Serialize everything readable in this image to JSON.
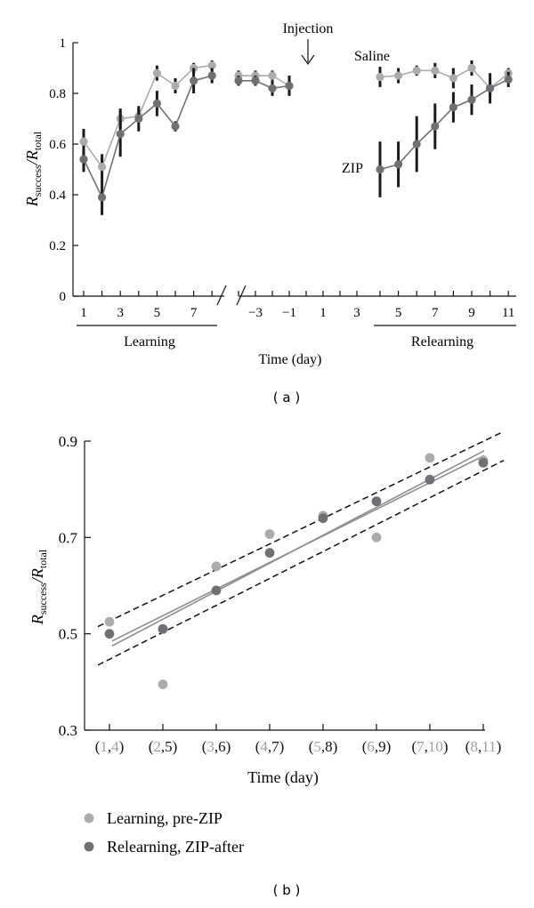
{
  "panel_labels": {
    "a": "( a )",
    "b": "( b )"
  },
  "chart_data": [
    {
      "type": "line",
      "ylabel": {
        "main": "R",
        "sub1": "success",
        "slash": "/R",
        "sub2": "total"
      },
      "xlabel": "Time (day)",
      "ylim": [
        0,
        1
      ],
      "yticks": [
        "0",
        "0.2",
        "0.4",
        "0.6",
        "0.8",
        "1"
      ],
      "ytick_values": [
        0,
        0.2,
        0.4,
        0.6,
        0.8,
        1
      ],
      "xticks_learning": [
        "1",
        "3",
        "5",
        "7"
      ],
      "xticks_mid": [
        "−3",
        "−1",
        "1",
        "3"
      ],
      "xticks_relearning": [
        "5",
        "7",
        "9",
        "11"
      ],
      "section_labels": {
        "learning": "Learning",
        "relearning": "Relearning"
      },
      "annotations": {
        "injection": "Injection",
        "saline": "Saline",
        "zip": "ZIP"
      },
      "series": [
        {
          "name": "Saline",
          "color": "#a9abad",
          "learning": [
            {
              "day": 1,
              "y": 0.61,
              "err": 0.05
            },
            {
              "day": 2,
              "y": 0.51,
              "err": 0.05
            },
            {
              "day": 3,
              "y": 0.7,
              "err": 0.04
            },
            {
              "day": 4,
              "y": 0.71,
              "err": 0.03
            },
            {
              "day": 5,
              "y": 0.88,
              "err": 0.03
            },
            {
              "day": 6,
              "y": 0.83,
              "err": 0.03
            },
            {
              "day": 7,
              "y": 0.9,
              "err": 0.02
            },
            {
              "day": 8,
              "y": 0.91,
              "err": 0.02
            }
          ],
          "pre": [
            {
              "day": -4,
              "y": 0.87,
              "err": 0.02
            },
            {
              "day": -3,
              "y": 0.87,
              "err": 0.02
            },
            {
              "day": -2,
              "y": 0.87,
              "err": 0.02
            },
            {
              "day": -1,
              "y": 0.83,
              "err": 0.02
            }
          ],
          "relearning": [
            {
              "day": 4,
              "y": 0.865,
              "err": 0.04
            },
            {
              "day": 5,
              "y": 0.87,
              "err": 0.03
            },
            {
              "day": 6,
              "y": 0.89,
              "err": 0.02
            },
            {
              "day": 7,
              "y": 0.89,
              "err": 0.03
            },
            {
              "day": 8,
              "y": 0.86,
              "err": 0.04
            },
            {
              "day": 9,
              "y": 0.9,
              "err": 0.03
            },
            {
              "day": 10,
              "y": 0.82,
              "err": 0.03
            },
            {
              "day": 11,
              "y": 0.88,
              "err": 0.02
            }
          ]
        },
        {
          "name": "ZIP",
          "color": "#6e7073",
          "learning": [
            {
              "day": 1,
              "y": 0.54,
              "err": 0.05
            },
            {
              "day": 2,
              "y": 0.39,
              "err": 0.07
            },
            {
              "day": 3,
              "y": 0.64,
              "err": 0.09
            },
            {
              "day": 4,
              "y": 0.7,
              "err": 0.05
            },
            {
              "day": 5,
              "y": 0.76,
              "err": 0.05
            },
            {
              "day": 6,
              "y": 0.67,
              "err": 0.02
            },
            {
              "day": 7,
              "y": 0.85,
              "err": 0.05
            },
            {
              "day": 8,
              "y": 0.87,
              "err": 0.03
            }
          ],
          "pre": [
            {
              "day": -4,
              "y": 0.85,
              "err": 0.02
            },
            {
              "day": -3,
              "y": 0.85,
              "err": 0.02
            },
            {
              "day": -2,
              "y": 0.82,
              "err": 0.03
            },
            {
              "day": -1,
              "y": 0.83,
              "err": 0.04
            }
          ],
          "relearning": [
            {
              "day": 4,
              "y": 0.5,
              "err": 0.11
            },
            {
              "day": 5,
              "y": 0.52,
              "err": 0.09
            },
            {
              "day": 6,
              "y": 0.6,
              "err": 0.11
            },
            {
              "day": 7,
              "y": 0.67,
              "err": 0.09
            },
            {
              "day": 8,
              "y": 0.745,
              "err": 0.06
            },
            {
              "day": 9,
              "y": 0.775,
              "err": 0.06
            },
            {
              "day": 10,
              "y": 0.82,
              "err": 0.06
            },
            {
              "day": 11,
              "y": 0.855,
              "err": 0.03
            }
          ]
        }
      ]
    },
    {
      "type": "scatter",
      "ylabel": {
        "main": "R",
        "sub1": "success",
        "slash": "/R",
        "sub2": "total"
      },
      "xlabel": "Time (day)",
      "ylim": [
        0.3,
        0.9
      ],
      "yticks": [
        "0.3",
        "0.5",
        "0.7",
        "0.9"
      ],
      "ytick_values": [
        0.3,
        0.5,
        0.7,
        0.9
      ],
      "categories": [
        {
          "open": "(",
          "a": "1",
          "sep": ",",
          "b": "4",
          "close": ")"
        },
        {
          "open": "(",
          "a": "2",
          "sep": ",",
          "b": "5",
          "close": ")"
        },
        {
          "open": "(",
          "a": "3",
          "sep": ",",
          "b": "6",
          "close": ")"
        },
        {
          "open": "(",
          "a": "4",
          "sep": ",",
          "b": "7",
          "close": ")"
        },
        {
          "open": "(",
          "a": "5",
          "sep": ",",
          "b": "8",
          "close": ")"
        },
        {
          "open": "(",
          "a": "6",
          "sep": ",",
          "b": "9",
          "close": ")"
        },
        {
          "open": "(",
          "a": "7",
          "sep": ",",
          "b": "10",
          "close": ")"
        },
        {
          "open": "(",
          "a": "8",
          "sep": ",",
          "b": "11",
          "close": ")"
        }
      ],
      "series": [
        {
          "name": "Learning, pre-ZIP",
          "color": "#a9abad",
          "values": [
            0.525,
            0.395,
            0.64,
            0.707,
            0.745,
            0.7,
            0.865,
            0.86
          ]
        },
        {
          "name": "Relearning, ZIP-after",
          "color": "#6e7073",
          "values": [
            0.5,
            0.51,
            0.59,
            0.668,
            0.74,
            0.775,
            0.82,
            0.855
          ]
        }
      ],
      "fit_lines": [
        {
          "color": "#8c8e90",
          "y_start": 0.475,
          "y_end": 0.88
        },
        {
          "color": "#8c8e90",
          "y_start": 0.485,
          "y_end": 0.87
        }
      ],
      "confidence_band": {
        "upper": [
          0.515,
          0.92
        ],
        "lower": [
          0.435,
          0.86
        ]
      },
      "legend": [
        "Learning, pre-ZIP",
        "Relearning, ZIP-after"
      ]
    }
  ]
}
